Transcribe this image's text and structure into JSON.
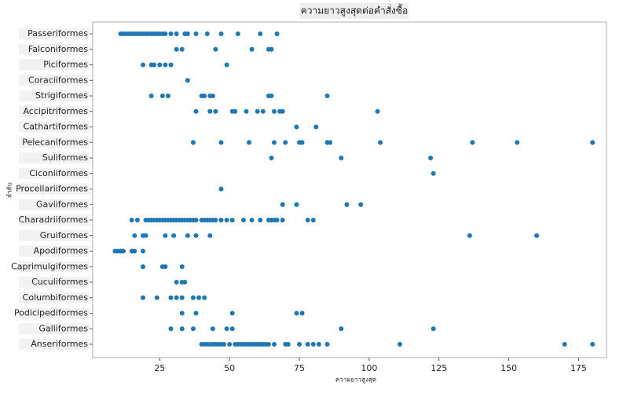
{
  "chart_data": {
    "type": "scatter",
    "title": "ความยาวสูงสุดต่อคำสั่งซื้อ",
    "x_label": "ความยาวสูงสุด",
    "y_label": "ลำดับ",
    "color": "#1f77b4",
    "xlim": [
      1,
      185
    ],
    "xticks": [
      25,
      50,
      75,
      100,
      125,
      150,
      175
    ],
    "categories": [
      "Passeriformes",
      "Falconiformes",
      "Piciformes",
      "Coraciiformes",
      "Strigiformes",
      "Accipitriformes",
      "Cathartiformes",
      "Pelecaniformes",
      "Suliformes",
      "Ciconiiformes",
      "Procellariiformes",
      "Gaviiformes",
      "Charadriiformes",
      "Gruiformes",
      "Apodiformes",
      "Caprimulgiformes",
      "Cuculiformes",
      "Columbiformes",
      "Podicipediformes",
      "Galliformes",
      "Anseriformes"
    ],
    "values": [
      [
        11,
        12,
        13,
        14,
        15,
        16,
        17,
        18,
        19,
        20,
        21,
        22,
        23,
        24,
        25,
        26,
        27,
        29,
        31,
        34,
        35,
        38,
        42,
        47,
        53,
        61,
        67
      ],
      [
        31,
        33,
        45,
        58,
        64,
        65
      ],
      [
        19,
        22,
        23,
        25,
        27,
        29,
        49
      ],
      [
        35
      ],
      [
        22,
        26,
        28,
        40,
        41,
        43,
        44,
        64,
        65,
        85
      ],
      [
        38,
        43,
        45,
        51,
        52,
        56,
        60,
        62,
        66,
        68,
        69,
        103
      ],
      [
        74,
        81
      ],
      [
        37,
        47,
        57,
        66,
        70,
        75,
        76,
        85,
        86,
        104,
        137,
        153,
        180
      ],
      [
        65,
        90,
        122
      ],
      [
        123
      ],
      [
        47
      ],
      [
        69,
        74,
        92,
        97
      ],
      [
        15,
        17,
        20,
        21,
        22,
        23,
        24,
        25,
        26,
        27,
        28,
        29,
        30,
        31,
        32,
        33,
        34,
        35,
        36,
        37,
        38,
        40,
        41,
        42,
        43,
        44,
        45,
        47,
        49,
        51,
        55,
        58,
        61,
        64,
        65,
        66,
        67,
        69,
        78,
        80
      ],
      [
        16,
        19,
        20,
        27,
        30,
        35,
        38,
        43,
        136,
        160
      ],
      [
        9,
        10,
        11,
        12,
        15,
        16,
        19
      ],
      [
        19,
        26,
        27,
        33
      ],
      [
        31,
        33,
        34
      ],
      [
        19,
        24,
        29,
        31,
        33,
        37,
        39,
        41
      ],
      [
        33,
        38,
        51,
        74,
        76
      ],
      [
        29,
        33,
        37,
        44,
        49,
        51,
        90,
        123
      ],
      [
        40,
        41,
        42,
        43,
        44,
        45,
        46,
        47,
        48,
        50,
        52,
        53,
        54,
        55,
        56,
        57,
        58,
        59,
        60,
        61,
        62,
        63,
        64,
        66,
        70,
        71,
        75,
        78,
        80,
        82,
        85,
        111,
        170,
        180
      ]
    ]
  }
}
